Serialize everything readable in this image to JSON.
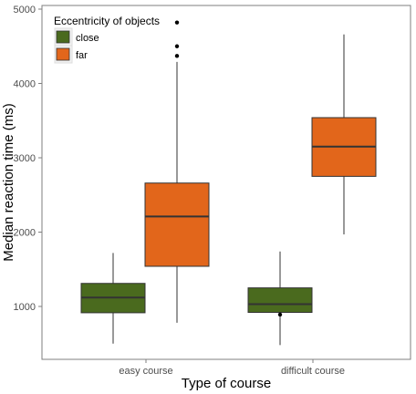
{
  "chart_data": {
    "type": "box",
    "xlabel": "Type of course",
    "ylabel": "Median reaction time (ms)",
    "ylim": [
      0,
      5000
    ],
    "yticks": [
      1000,
      2000,
      3000,
      4000,
      5000
    ],
    "categories": [
      "easy course",
      "difficult course"
    ],
    "grid": false,
    "legend": {
      "title": "Eccentricity of objects",
      "placement": "top-left"
    },
    "series": [
      {
        "name": "close",
        "color": "#4a6a1e",
        "boxes": [
          {
            "category": "easy course",
            "whisker_low": 500,
            "q1": 915,
            "median": 1120,
            "q3": 1310,
            "whisker_high": 1720,
            "outliers": []
          },
          {
            "category": "difficult course",
            "whisker_low": 480,
            "q1": 920,
            "median": 1030,
            "q3": 1250,
            "whisker_high": 1740,
            "outliers": [
              890
            ]
          }
        ]
      },
      {
        "name": "far",
        "color": "#e2661b",
        "boxes": [
          {
            "category": "easy course",
            "whisker_low": 780,
            "q1": 1540,
            "median": 2210,
            "q3": 2660,
            "whisker_high": 4290,
            "outliers": [
              4370,
              4500,
              4820
            ]
          },
          {
            "category": "difficult course",
            "whisker_low": 1970,
            "q1": 2750,
            "median": 3150,
            "q3": 3540,
            "whisker_high": 4660,
            "outliers": []
          }
        ]
      }
    ]
  }
}
